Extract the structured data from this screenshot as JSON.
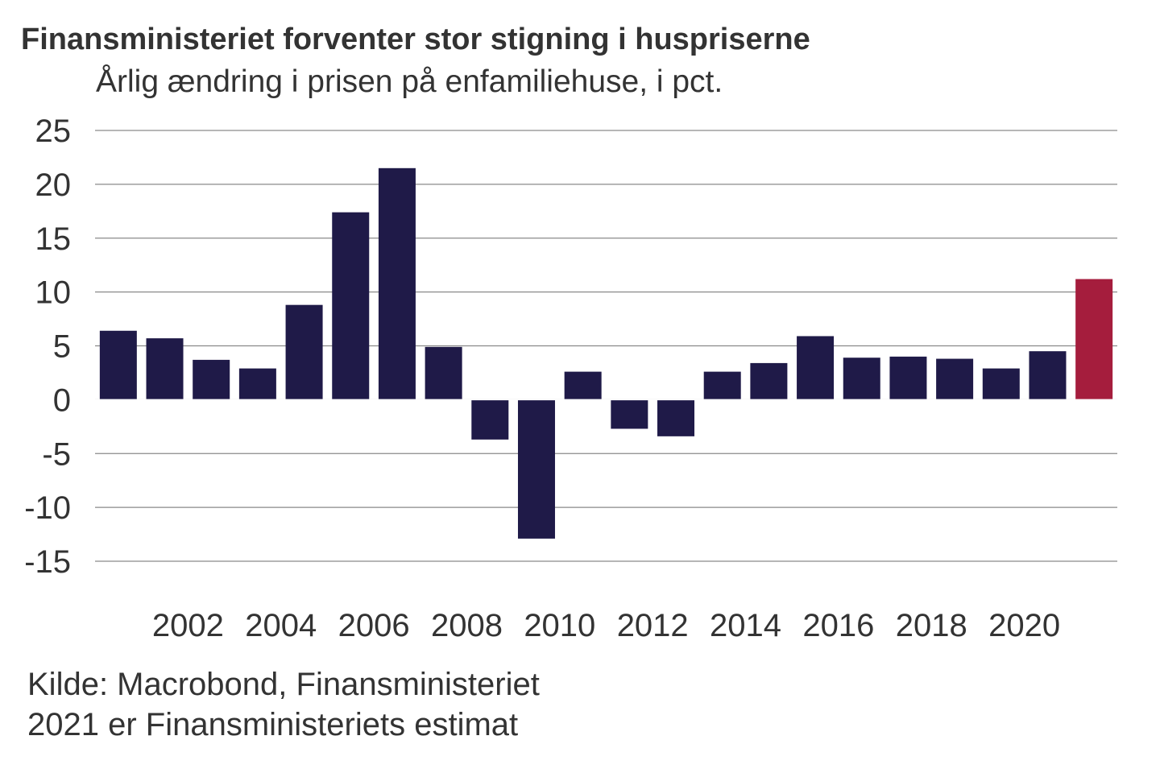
{
  "chart_data": {
    "type": "bar",
    "title": "Finansministeriet forventer stor stigning i huspriserne",
    "subtitle": "Årlig ændring i prisen på enfamiliehuse, i pct.",
    "categories": [
      2000,
      2001,
      2002,
      2003,
      2004,
      2005,
      2006,
      2007,
      2008,
      2009,
      2010,
      2011,
      2012,
      2013,
      2014,
      2015,
      2016,
      2017,
      2018,
      2019,
      2020,
      2021
    ],
    "values": [
      6.4,
      5.7,
      3.7,
      2.9,
      8.8,
      17.4,
      21.5,
      4.9,
      -3.7,
      -12.9,
      2.6,
      -2.7,
      -3.4,
      2.6,
      3.4,
      5.9,
      3.9,
      4.0,
      3.8,
      2.9,
      4.5,
      11.2
    ],
    "estimate_categories": [
      2021
    ],
    "ylim": [
      -15,
      25
    ],
    "yticks": [
      25,
      20,
      15,
      10,
      5,
      0,
      -5,
      -10,
      -15
    ],
    "xtick_labels": [
      "2002",
      "2004",
      "2006",
      "2008",
      "2010",
      "2012",
      "2014",
      "2016",
      "2018",
      "2020"
    ],
    "grid": true,
    "colors": {
      "actual": "#1f1a48",
      "estimate": "#a51d3d",
      "grid": "#8a8a8a"
    }
  },
  "source": {
    "line1": "Kilde: Macrobond, Finansministeriet",
    "line2": "2021 er Finansministeriets estimat"
  }
}
